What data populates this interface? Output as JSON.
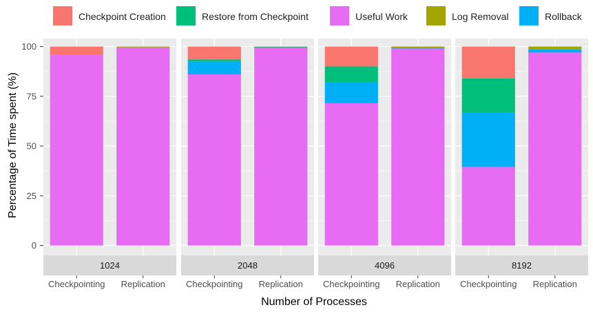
{
  "chart_data": {
    "type": "bar",
    "stacked": true,
    "facet_by": "Number of Processes",
    "xlabel": "Number of Processes",
    "ylabel": "Percentage of Time spent (%)",
    "ylim": [
      -5,
      104
    ],
    "yticks": [
      0,
      25,
      50,
      75,
      100
    ],
    "grid": true,
    "legend_position": "top",
    "categories": [
      "Checkpointing",
      "Replication"
    ],
    "series_order_bottom_to_top": [
      "Useful Work",
      "Rollback",
      "Restore from Checkpoint",
      "Log Removal",
      "Checkpoint Creation"
    ],
    "legend": [
      {
        "name": "Checkpoint Creation",
        "color": "#f8766d"
      },
      {
        "name": "Restore from Checkpoint",
        "color": "#00bf7d"
      },
      {
        "name": "Useful Work",
        "color": "#e76bf3"
      },
      {
        "name": "Log Removal",
        "color": "#a3a500"
      },
      {
        "name": "Rollback",
        "color": "#00b0f6"
      }
    ],
    "panels": [
      {
        "label": "1024",
        "bars": [
          {
            "category": "Checkpointing",
            "segments": {
              "Useful Work": 96,
              "Rollback": 0,
              "Restore from Checkpoint": 0,
              "Log Removal": 0,
              "Checkpoint Creation": 4
            }
          },
          {
            "category": "Replication",
            "segments": {
              "Useful Work": 99.6,
              "Rollback": 0,
              "Restore from Checkpoint": 0,
              "Log Removal": 0.4,
              "Checkpoint Creation": 0
            }
          }
        ]
      },
      {
        "label": "2048",
        "bars": [
          {
            "category": "Checkpointing",
            "segments": {
              "Useful Work": 86,
              "Rollback": 6.5,
              "Restore from Checkpoint": 1,
              "Log Removal": 0,
              "Checkpoint Creation": 6.5
            }
          },
          {
            "category": "Replication",
            "segments": {
              "Useful Work": 99.3,
              "Rollback": 0.4,
              "Restore from Checkpoint": 0,
              "Log Removal": 0.3,
              "Checkpoint Creation": 0
            }
          }
        ]
      },
      {
        "label": "4096",
        "bars": [
          {
            "category": "Checkpointing",
            "segments": {
              "Useful Work": 71.5,
              "Rollback": 10.5,
              "Restore from Checkpoint": 8,
              "Log Removal": 0,
              "Checkpoint Creation": 10
            }
          },
          {
            "category": "Replication",
            "segments": {
              "Useful Work": 99,
              "Rollback": 0.3,
              "Restore from Checkpoint": 0,
              "Log Removal": 0.7,
              "Checkpoint Creation": 0
            }
          }
        ]
      },
      {
        "label": "8192",
        "bars": [
          {
            "category": "Checkpointing",
            "segments": {
              "Useful Work": 39.5,
              "Rollback": 27.5,
              "Restore from Checkpoint": 17,
              "Log Removal": 0,
              "Checkpoint Creation": 16
            }
          },
          {
            "category": "Replication",
            "segments": {
              "Useful Work": 97,
              "Rollback": 1.5,
              "Restore from Checkpoint": 0,
              "Log Removal": 1.5,
              "Checkpoint Creation": 0
            }
          }
        ]
      }
    ]
  }
}
